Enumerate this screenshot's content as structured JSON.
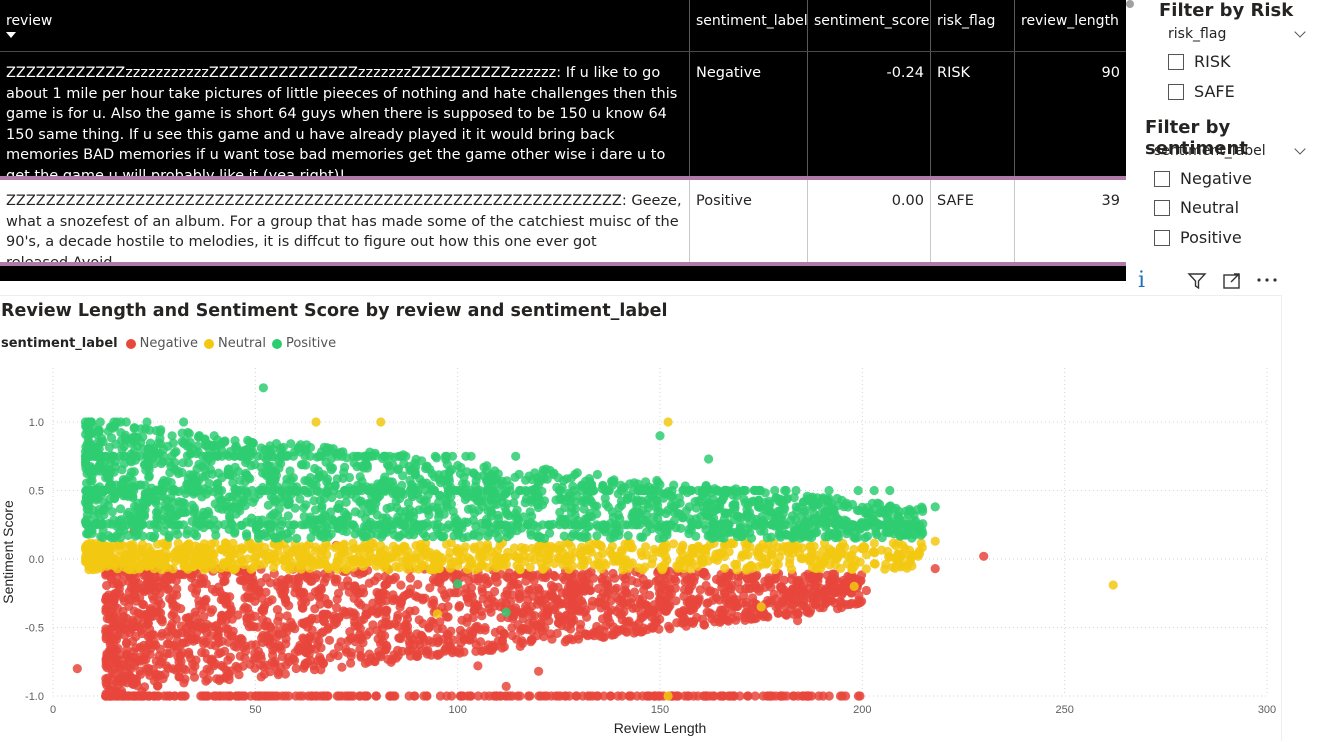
{
  "table": {
    "columns": [
      "review",
      "sentiment_label",
      "sentiment_score",
      "risk_flag",
      "review_length"
    ],
    "rows": [
      {
        "review": "ZZZZZZZZZZZZzzzzzzzzzzzZZZZZZZZZZZZZZZzzzzzzzZZZZZZZZZZzzzzzz: If u like to go about 1 mile per hour take pictures of little pieeces of nothing and hate challenges then this game is for u. Also the game is short 64 guys when there is supposed to be 150 u know 64 150 same thing. If u see this game and u have already played it it would bring back memories BAD memories if u want tose bad memories get the game other wise i dare u to get the game u will probably like it (yea right)!",
        "sentiment_label": "Negative",
        "sentiment_score": "-0.24",
        "risk_flag": "RISK",
        "review_length": "90"
      },
      {
        "review": "ZZZZZZZZZZZZZZZZZZZZZZZZZZZZZZZZZZZZZZZZZZZZZZZZZZZZZZZZZZZZZZ: Geeze, what a snozefest of an album. For a group that has made some of the catchiest muisc of the 90's, a decade hostile to melodies, it is diffcut to figure out how this one ever got released.Avoid.",
        "sentiment_label": "Positive",
        "sentiment_score": "0.00",
        "risk_flag": "SAFE",
        "review_length": "39"
      }
    ]
  },
  "slicer_risk": {
    "title": "Filter by Risk",
    "field": "risk_flag",
    "options": [
      "RISK",
      "SAFE"
    ]
  },
  "slicer_sentiment": {
    "title": "Filter by sentiment",
    "field": "sentiment_label",
    "options": [
      "Negative",
      "Neutral",
      "Positive"
    ]
  },
  "visual_header_icons": [
    "info-icon",
    "filter-icon",
    "focus-mode-icon",
    "more-options-icon"
  ],
  "chart_data": {
    "type": "scatter",
    "title": "Review Length and Sentiment Score by review and sentiment_label",
    "legend_title": "sentiment_label",
    "legend_placement": "top-left",
    "xlabel": "Review Length",
    "ylabel": "Sentiment Score",
    "xlim": [
      0,
      300
    ],
    "ylim": [
      -1.0,
      1.28
    ],
    "x_ticks": [
      "0",
      "50",
      "100",
      "150",
      "200",
      "250",
      "300"
    ],
    "y_ticks": [
      "-1.0",
      "-0.5",
      "0.0",
      "0.5",
      "1.0"
    ],
    "grid": "dotted",
    "series": [
      {
        "name": "Negative",
        "color": "#e8473c",
        "bands": [
          {
            "x_range": [
              13,
              200
            ],
            "y_range": [
              -1.0,
              -0.05
            ],
            "density": "high",
            "y_top_at_xmax": -0.1,
            "y_bottom_at_xmax": -0.35
          }
        ],
        "points": [
          [
            6,
            -0.8
          ],
          [
            13,
            -0.3
          ],
          [
            20,
            0.2
          ],
          [
            70,
            0.1
          ],
          [
            105,
            -0.78
          ],
          [
            112,
            -0.93
          ],
          [
            120,
            -0.82
          ],
          [
            184,
            -0.45
          ],
          [
            201,
            -0.23
          ],
          [
            218,
            -0.07
          ],
          [
            230,
            0.02
          ]
        ]
      },
      {
        "name": "Neutral",
        "color": "#f2c811",
        "bands": [
          {
            "x_range": [
              8,
              215
            ],
            "y_range": [
              -0.08,
              0.12
            ],
            "density": "high"
          }
        ],
        "points": [
          [
            152,
            1.0
          ],
          [
            65,
            1.0
          ],
          [
            81,
            1.0
          ],
          [
            152,
            -1.0
          ],
          [
            95,
            -0.4
          ],
          [
            175,
            -0.35
          ],
          [
            198,
            -0.2
          ],
          [
            212,
            0.35
          ],
          [
            218,
            0.13
          ],
          [
            262,
            -0.19
          ]
        ]
      },
      {
        "name": "Positive",
        "color": "#2ecc71",
        "bands": [
          {
            "x_range": [
              8,
              215
            ],
            "y_range": [
              0.15,
              1.0
            ],
            "density": "high",
            "y_top_at_xmax": 0.38
          }
        ],
        "points": [
          [
            52,
            1.25
          ],
          [
            8,
            1.0
          ],
          [
            150,
            0.9
          ],
          [
            162,
            0.73
          ],
          [
            100,
            -0.18
          ],
          [
            112,
            -0.39
          ],
          [
            218,
            0.38
          ],
          [
            210,
            0.19
          ]
        ]
      }
    ]
  }
}
